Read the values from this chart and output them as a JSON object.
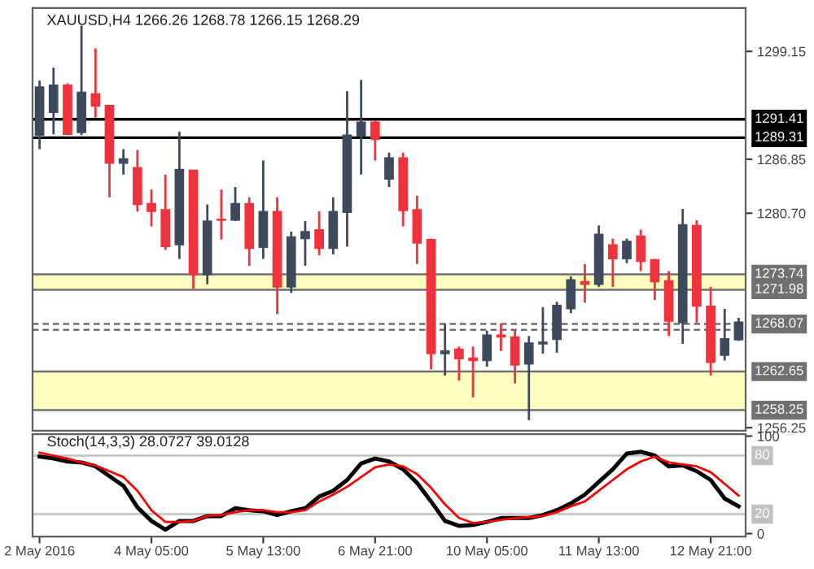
{
  "chart_data": [
    {
      "type": "candlestick",
      "title": "XAUUSD,H4 1266.26 1268.78 1266.15 1268.29",
      "tick_labels": "y",
      "categories": [
        null,
        null,
        null,
        null,
        null,
        null,
        null,
        null,
        null,
        null,
        null,
        null,
        null,
        null,
        null,
        null,
        null,
        null,
        null,
        null,
        null,
        null,
        null,
        null,
        null,
        null,
        null,
        null,
        null,
        null,
        null,
        null,
        null,
        null,
        null,
        null,
        null,
        null,
        null,
        null,
        null,
        null,
        null,
        null,
        null,
        null,
        null,
        null,
        null,
        null,
        null
      ],
      "ohlc": [
        [
          1289.6,
          1295.8,
          1288.0,
          1295.1
        ],
        [
          1292.2,
          1297.3,
          1289.7,
          1295.3
        ],
        [
          1295.3,
          1295.5,
          1289.6,
          1289.7
        ],
        [
          1289.9,
          1302.1,
          1289.6,
          1294.5
        ],
        [
          1294.3,
          1299.5,
          1291.6,
          1292.9
        ],
        [
          1293.0,
          1293.0,
          1282.5,
          1286.4
        ],
        [
          1286.4,
          1288.0,
          1285.1,
          1286.9
        ],
        [
          1285.9,
          1287.9,
          1280.9,
          1281.7
        ],
        [
          1281.8,
          1283.4,
          1279.2,
          1280.9
        ],
        [
          1281.1,
          1285.1,
          1276.5,
          1276.9
        ],
        [
          1277.1,
          1290.0,
          1275.5,
          1285.7
        ],
        [
          1285.6,
          1285.6,
          1272.1,
          1273.7
        ],
        [
          1273.7,
          1281.7,
          1272.6,
          1279.8
        ],
        [
          1280.0,
          1283.4,
          1277.7,
          1279.9
        ],
        [
          1279.9,
          1283.7,
          1279.8,
          1281.8
        ],
        [
          1281.8,
          1282.5,
          1274.7,
          1276.7
        ],
        [
          1276.8,
          1286.7,
          1275.5,
          1280.9
        ],
        [
          1280.9,
          1282.5,
          1269.2,
          1272.3
        ],
        [
          1272.3,
          1278.6,
          1271.6,
          1278.0
        ],
        [
          1277.8,
          1279.8,
          1274.7,
          1278.6
        ],
        [
          1278.8,
          1280.9,
          1275.9,
          1276.7
        ],
        [
          1276.7,
          1282.5,
          1276.0,
          1280.9
        ],
        [
          1280.8,
          1294.6,
          1276.9,
          1289.6
        ],
        [
          1289.5,
          1295.9,
          1285.1,
          1291.1
        ],
        [
          1291.1,
          1291.3,
          1286.7,
          1289.1
        ],
        [
          1284.6,
          1287.6,
          1283.7,
          1287.0
        ],
        [
          1287.0,
          1287.6,
          1279.2,
          1281.0
        ],
        [
          1281.1,
          1282.7,
          1274.9,
          1277.3
        ],
        [
          1277.7,
          1277.8,
          1262.9,
          1264.7
        ],
        [
          1264.7,
          1268.1,
          1262.2,
          1265.0
        ],
        [
          1265.2,
          1265.5,
          1261.6,
          1264.1
        ],
        [
          1264.2,
          1265.5,
          1259.7,
          1263.9
        ],
        [
          1263.9,
          1267.3,
          1263.2,
          1266.8
        ],
        [
          1266.8,
          1268.1,
          1265.0,
          1266.6
        ],
        [
          1266.6,
          1267.3,
          1261.3,
          1263.4
        ],
        [
          1263.5,
          1266.7,
          1257.1,
          1265.9
        ],
        [
          1265.8,
          1270.0,
          1264.7,
          1266.0
        ],
        [
          1266.3,
          1270.6,
          1264.8,
          1270.2
        ],
        [
          1269.8,
          1273.5,
          1269.3,
          1273.1
        ],
        [
          1272.9,
          1274.9,
          1270.5,
          1272.6
        ],
        [
          1272.6,
          1279.3,
          1272.3,
          1278.3
        ],
        [
          1277.1,
          1277.8,
          1272.3,
          1275.5
        ],
        [
          1275.5,
          1277.8,
          1275.0,
          1277.5
        ],
        [
          1278.1,
          1278.8,
          1274.1,
          1275.2
        ],
        [
          1275.4,
          1275.5,
          1270.8,
          1272.9
        ],
        [
          1273.0,
          1274.1,
          1266.7,
          1268.4
        ],
        [
          1268.2,
          1281.2,
          1265.8,
          1279.4
        ],
        [
          1279.3,
          1279.9,
          1268.2,
          1270.1
        ],
        [
          1270.1,
          1272.3,
          1262.2,
          1263.7
        ],
        [
          1264.5,
          1269.8,
          1263.9,
          1266.4
        ],
        [
          1266.26,
          1268.78,
          1266.15,
          1268.29
        ]
      ],
      "colors": [
        "#3d4a5c",
        "#3d4a5c",
        "#f0323c",
        "#3d4a5c",
        "#f0323c",
        "#f0323c",
        "#3d4a5c",
        "#f0323c",
        "#f0323c",
        "#f0323c",
        "#3d4a5c",
        "#f0323c",
        "#3d4a5c",
        "#f0323c",
        "#3d4a5c",
        "#f0323c",
        "#3d4a5c",
        "#f0323c",
        "#3d4a5c",
        "#3d4a5c",
        "#f0323c",
        "#3d4a5c",
        "#3d4a5c",
        "#3d4a5c",
        "#f0323c",
        "#3d4a5c",
        "#f0323c",
        "#f0323c",
        "#f0323c",
        "#3d4a5c",
        "#f0323c",
        "#f0323c",
        "#3d4a5c",
        "#f0323c",
        "#f0323c",
        "#3d4a5c",
        "#3d4a5c",
        "#3d4a5c",
        "#3d4a5c",
        "#f0323c",
        "#3d4a5c",
        "#f0323c",
        "#3d4a5c",
        "#f0323c",
        "#f0323c",
        "#f0323c",
        "#3d4a5c",
        "#f0323c",
        "#f0323c",
        "#3d4a5c",
        "#3d4a5c"
      ],
      "ylim": [
        1255.9,
        1304.1
      ],
      "yticks": [
        1256.25,
        {
          "value": 1280.7,
          "label": "1280.70"
        },
        1286.85,
        1299.15
      ],
      "bands": [
        {
          "axis": "y",
          "from": 1271.98,
          "to": 1273.74,
          "color": "#ffffc0"
        },
        {
          "axis": "y",
          "from": 1258.25,
          "to": 1262.65,
          "color": "#ffffc0"
        }
      ],
      "ref_lines": [
        {
          "axis": "y",
          "value": 1291.41,
          "label": "1291.41",
          "color": "#000000"
        },
        {
          "axis": "y",
          "value": 1289.31,
          "label": "1289.31",
          "color": "#000000"
        },
        {
          "axis": "y",
          "value": 1273.74,
          "label": "1273.74",
          "color": "#707070"
        },
        {
          "axis": "y",
          "value": 1271.98,
          "label": "1271.98",
          "color": "#707070"
        },
        {
          "axis": "y",
          "value": 1268.07,
          "label": "1268.07",
          "color": "#707070",
          "line_style": "dashed"
        },
        {
          "axis": "y",
          "value": 1267.4,
          "color": "#707070",
          "line_style": "dashed"
        },
        {
          "axis": "y",
          "value": 1262.65,
          "label": "1262.65",
          "color": "#707070"
        },
        {
          "axis": "y",
          "value": 1258.25,
          "label": "1258.25",
          "color": "#707070"
        }
      ]
    },
    {
      "type": "line",
      "title": "Stoch(14,3,3) 28.0727 39.0128",
      "categories": [
        "2 May 2016",
        null,
        null,
        null,
        null,
        null,
        null,
        null,
        "4 May 05:00",
        null,
        null,
        null,
        null,
        null,
        null,
        null,
        "5 May 13:00",
        null,
        null,
        null,
        null,
        null,
        null,
        null,
        "6 May 21:00",
        null,
        null,
        null,
        null,
        null,
        null,
        null,
        "10 May 05:00",
        null,
        null,
        null,
        null,
        null,
        null,
        null,
        "11 May 13:00",
        null,
        null,
        null,
        null,
        null,
        null,
        null,
        "12 May 21:00",
        null,
        null
      ],
      "series": [
        {
          "color": "#000000",
          "values": [
            79,
            77,
            74,
            73,
            69,
            59,
            49,
            27,
            13,
            4,
            13,
            13,
            18,
            18,
            26,
            24,
            23,
            19,
            23,
            26,
            38,
            44,
            55,
            72,
            77,
            74,
            66,
            52,
            33,
            13,
            8,
            9,
            12,
            16,
            16,
            16,
            19,
            24,
            31,
            40,
            53,
            66,
            82,
            84,
            80,
            69,
            70,
            64,
            55,
            36,
            28
          ]
        },
        {
          "color": "#ff0000",
          "values": [
            83,
            80,
            77,
            73,
            70,
            64,
            58,
            44,
            24,
            12,
            12,
            13,
            18,
            19,
            22,
            24,
            24,
            22,
            22,
            24,
            33,
            40,
            48,
            58,
            68,
            71,
            69,
            61,
            47,
            30,
            16,
            11,
            12,
            14,
            16,
            17,
            18,
            22,
            28,
            33,
            44,
            55,
            66,
            74,
            79,
            73,
            71,
            69,
            63,
            51,
            39
          ]
        }
      ],
      "ylim": [
        -3,
        102
      ],
      "yticks": [
        0,
        100
      ],
      "ref_lines": [
        {
          "axis": "y",
          "value": 80,
          "label": "80",
          "color": "#c0c0c0"
        },
        {
          "axis": "y",
          "value": 20,
          "label": "20",
          "color": "#c0c0c0"
        }
      ]
    }
  ]
}
